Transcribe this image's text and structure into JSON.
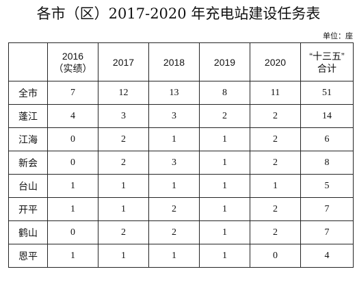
{
  "title": "各市（区）2017-2020 年充电站建设任务表",
  "unit_label": "单位：座",
  "table": {
    "headers": [
      "",
      "2016\n（实绩）",
      "2017",
      "2018",
      "2019",
      "2020",
      "“十三五”\n合计"
    ],
    "rows": [
      [
        "全市",
        "7",
        "12",
        "13",
        "8",
        "11",
        "51"
      ],
      [
        "蓬江",
        "4",
        "3",
        "3",
        "2",
        "2",
        "14"
      ],
      [
        "江海",
        "0",
        "2",
        "1",
        "1",
        "2",
        "6"
      ],
      [
        "新会",
        "0",
        "2",
        "3",
        "1",
        "2",
        "8"
      ],
      [
        "台山",
        "1",
        "1",
        "1",
        "1",
        "1",
        "5"
      ],
      [
        "开平",
        "1",
        "1",
        "2",
        "1",
        "2",
        "7"
      ],
      [
        "鹤山",
        "0",
        "2",
        "2",
        "1",
        "2",
        "7"
      ],
      [
        "恩平",
        "1",
        "1",
        "1",
        "1",
        "0",
        "4"
      ]
    ]
  }
}
